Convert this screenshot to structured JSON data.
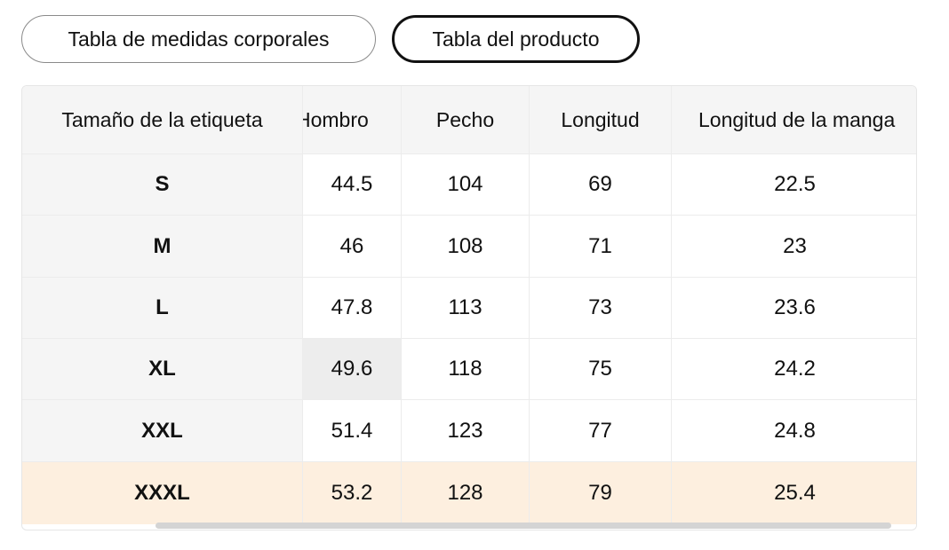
{
  "tabs": [
    {
      "label": "Tabla de medidas corporales",
      "selected": false
    },
    {
      "label": "Tabla del producto",
      "selected": true
    }
  ],
  "table": {
    "columns": [
      "Tamaño de la etiqueta",
      "Hombro",
      "Pecho",
      "Longitud",
      "Longitud de la manga"
    ],
    "rows": [
      [
        "S",
        "44.5",
        "104",
        "69",
        "22.5"
      ],
      [
        "M",
        "46",
        "108",
        "71",
        "23"
      ],
      [
        "L",
        "47.8",
        "113",
        "73",
        "23.6"
      ],
      [
        "XL",
        "49.6",
        "118",
        "75",
        "24.2"
      ],
      [
        "XXL",
        "51.4",
        "123",
        "77",
        "24.8"
      ],
      [
        "XXXL",
        "53.2",
        "128",
        "79",
        "25.4"
      ]
    ],
    "highlighted_row": "XXXL"
  },
  "colors": {
    "highlight_row": "#fdefdf",
    "header_bg": "#f5f5f5",
    "selected_tab_border": "#111111"
  }
}
